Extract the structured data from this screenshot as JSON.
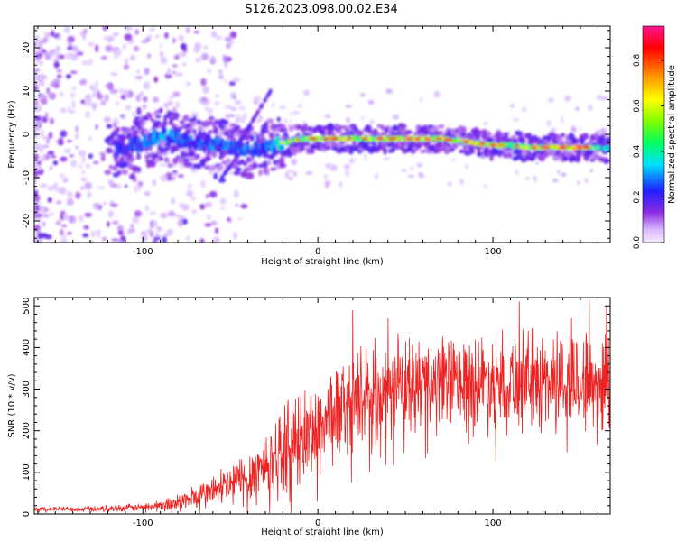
{
  "title": "S126.2023.098.00.02.E34",
  "colors": {
    "snr_line": "#ee2222",
    "axes": "#000000"
  },
  "colorbar": {
    "label": "Normalized spectral amplitude",
    "ticks": [
      "0.0",
      "0.2",
      "0.4",
      "0.6",
      "0.8"
    ],
    "tick_values": [
      0.0,
      0.2,
      0.4,
      0.6,
      0.8
    ],
    "range": [
      0,
      0.95
    ],
    "colormap": "rainbow (white-violet-blue-cyan-green-yellow-red-magenta)"
  },
  "chart_data": [
    {
      "type": "heatmap",
      "xlabel": "Height of straight line (km)",
      "ylabel": "Frequency (Hz)",
      "xlim": [
        -162,
        167
      ],
      "ylim": [
        -25,
        25
      ],
      "x_ticks": [
        "-100",
        "0",
        "100"
      ],
      "x_tick_values": [
        -100,
        0,
        100
      ],
      "y_ticks": [
        "-20",
        "-10",
        "0",
        "10",
        "20"
      ],
      "y_tick_values": [
        -20,
        -10,
        0,
        10,
        20
      ],
      "grid": false,
      "ridge": {
        "x": [
          -110,
          -100,
          -90,
          -80,
          -70,
          -60,
          -50,
          -40,
          -30,
          -20,
          -10,
          0,
          10,
          20,
          30,
          40,
          50,
          60,
          70,
          80,
          90,
          100,
          110,
          120,
          130,
          140,
          150,
          160,
          167
        ],
        "freq": [
          -3,
          -2,
          0,
          -1,
          -2,
          -2,
          -3,
          -4,
          -3,
          -2,
          -1,
          -1,
          -1,
          -1,
          -1,
          -1,
          -1,
          -1,
          -1,
          -1.5,
          -2,
          -2.5,
          -2.5,
          -3,
          -3,
          -3,
          -3,
          -3,
          -3.5
        ],
        "amplitude": [
          0.25,
          0.3,
          0.35,
          0.3,
          0.28,
          0.3,
          0.3,
          0.3,
          0.3,
          0.45,
          0.6,
          0.65,
          0.7,
          0.65,
          0.6,
          0.65,
          0.7,
          0.75,
          0.7,
          0.6,
          0.7,
          0.6,
          0.55,
          0.65,
          0.75,
          0.8,
          0.75,
          0.55,
          0.4
        ]
      }
    },
    {
      "type": "line",
      "xlabel": "Height of straight line (km)",
      "ylabel": "SNR (10 * v/v)",
      "xlim": [
        -162,
        167
      ],
      "ylim": [
        0,
        520
      ],
      "x_ticks": [
        "-100",
        "0",
        "100"
      ],
      "x_tick_values": [
        -100,
        0,
        100
      ],
      "y_ticks": [
        "0",
        "100",
        "200",
        "300",
        "400",
        "500"
      ],
      "y_tick_values": [
        0,
        100,
        200,
        300,
        400,
        500
      ],
      "grid": false,
      "envelope": {
        "x": [
          -162,
          -140,
          -120,
          -100,
          -90,
          -80,
          -70,
          -60,
          -50,
          -40,
          -30,
          -20,
          -10,
          0,
          10,
          20,
          30,
          40,
          60,
          80,
          100,
          120,
          140,
          160,
          167
        ],
        "mean": [
          12,
          12,
          13,
          16,
          20,
          28,
          40,
          55,
          70,
          90,
          120,
          150,
          180,
          210,
          240,
          270,
          290,
          300,
          310,
          315,
          320,
          320,
          320,
          320,
          320
        ],
        "spread": [
          6,
          6,
          8,
          10,
          15,
          22,
          30,
          40,
          55,
          70,
          90,
          110,
          120,
          120,
          120,
          120,
          120,
          120,
          120,
          120,
          120,
          125,
          130,
          130,
          130
        ],
        "peaks": [
          [
            20,
            490
          ],
          [
            115,
            510
          ],
          [
            155,
            515
          ],
          [
            165,
            500
          ],
          [
            145,
            470
          ],
          [
            40,
            470
          ]
        ]
      }
    }
  ]
}
